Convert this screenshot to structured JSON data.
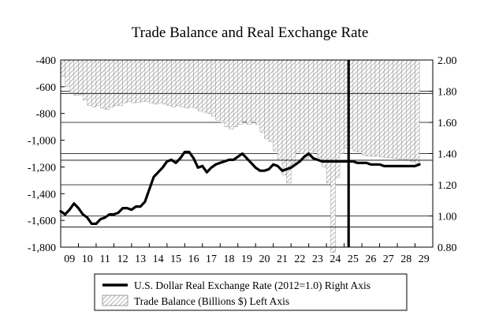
{
  "chart_data": {
    "type": "bar",
    "title": "Trade Balance and Real Exchange Rate",
    "grid": true,
    "x_tick_labels": [
      "09",
      "10",
      "11",
      "12",
      "13",
      "14",
      "15",
      "16",
      "17",
      "18",
      "19",
      "20",
      "21",
      "22",
      "23",
      "24",
      "25",
      "26",
      "27",
      "28",
      "29"
    ],
    "left_axis": {
      "ylim": [
        -1800,
        -400
      ],
      "ticks": [
        -400,
        -600,
        -800,
        -1000,
        -1200,
        -1400,
        -1600,
        -1800
      ],
      "tick_labels": [
        "-400",
        "-600",
        "-800",
        "-1,000",
        "-1,200",
        "-1,400",
        "-1,600",
        "-1,800"
      ]
    },
    "right_axis": {
      "ylim": [
        0.8,
        2.0
      ],
      "ticks": [
        2.0,
        1.8,
        1.6,
        1.4,
        1.2,
        1.0,
        0.8
      ],
      "tick_labels": [
        "2.00",
        "1.80",
        "1.60",
        "1.40",
        "1.20",
        "1.00",
        "0.80"
      ]
    },
    "hlines_left_axis": [
      -650,
      -1150,
      -1650
    ],
    "vertical_marker_x": 2025.25,
    "legend": {
      "position": "bottom",
      "entries": [
        "U.S. Dollar Real Exchange Rate (2012=1.0) Right Axis",
        "Trade Balance (Billions $) Left Axis"
      ]
    },
    "series": [
      {
        "name": "Trade Balance (Billions $) Left Axis",
        "type": "bar",
        "axis": "left",
        "pattern": "diagonal-hatch",
        "x": [
          2009.25,
          2009.5,
          2009.75,
          2010,
          2010.25,
          2010.5,
          2010.75,
          2011,
          2011.25,
          2011.5,
          2011.75,
          2012,
          2012.25,
          2012.5,
          2012.75,
          2013,
          2013.25,
          2013.5,
          2013.75,
          2014,
          2014.25,
          2014.5,
          2014.75,
          2015,
          2015.25,
          2015.5,
          2015.75,
          2016,
          2016.25,
          2016.5,
          2016.75,
          2017,
          2017.25,
          2017.5,
          2017.75,
          2018,
          2018.25,
          2018.5,
          2018.75,
          2019,
          2019.25,
          2019.5,
          2019.75,
          2020,
          2020.25,
          2020.5,
          2020.75,
          2021,
          2021.25,
          2021.5,
          2021.75,
          2022,
          2022.25,
          2022.5,
          2022.75,
          2023,
          2023.25,
          2023.5,
          2023.75,
          2024,
          2024.25,
          2024.5,
          2024.75,
          2025,
          2025.25,
          2025.5,
          2025.75,
          2026,
          2026.25,
          2026.5,
          2026.75,
          2027,
          2027.25,
          2027.5,
          2027.75,
          2028,
          2028.25,
          2028.5,
          2028.75,
          2029,
          2029.25
        ],
        "values": [
          -520,
          -600,
          -640,
          -665,
          -660,
          -700,
          -740,
          -750,
          -740,
          -760,
          -770,
          -750,
          -740,
          -740,
          -720,
          -710,
          -720,
          -715,
          -710,
          -710,
          -720,
          -730,
          -720,
          -730,
          -740,
          -750,
          -740,
          -750,
          -760,
          -750,
          -760,
          -780,
          -790,
          -800,
          -820,
          -850,
          -870,
          -900,
          -915,
          -900,
          -880,
          -860,
          -880,
          -850,
          -880,
          -940,
          -990,
          -1010,
          -1080,
          -1150,
          -1260,
          -1320,
          -1180,
          -1090,
          -1100,
          -1140,
          -1100,
          -1080,
          -1130,
          -1200,
          -1320,
          -1840,
          -1280,
          -1100,
          -1060,
          -1060,
          -1080,
          -1090,
          -1110,
          -1120,
          -1120,
          -1120,
          -1125,
          -1130,
          -1130,
          -1135,
          -1140,
          -1140,
          -1150,
          -1160,
          -1170
        ]
      },
      {
        "name": "U.S. Dollar Real Exchange Rate (2012=1.0) Right Axis",
        "type": "line",
        "axis": "right",
        "x": [
          2009,
          2009.25,
          2009.5,
          2009.75,
          2010,
          2010.25,
          2010.5,
          2010.75,
          2011,
          2011.25,
          2011.5,
          2011.75,
          2012,
          2012.25,
          2012.5,
          2012.75,
          2013,
          2013.25,
          2013.5,
          2013.75,
          2014,
          2014.25,
          2014.5,
          2014.75,
          2015,
          2015.25,
          2015.5,
          2015.75,
          2016,
          2016.25,
          2016.5,
          2016.75,
          2017,
          2017.25,
          2017.5,
          2017.75,
          2018,
          2018.25,
          2018.5,
          2018.75,
          2019,
          2019.25,
          2019.5,
          2019.75,
          2020,
          2020.25,
          2020.5,
          2020.75,
          2021,
          2021.25,
          2021.5,
          2021.75,
          2022,
          2022.25,
          2022.5,
          2022.75,
          2023,
          2023.25,
          2023.5,
          2023.75,
          2024,
          2024.25,
          2024.5,
          2024.75,
          2025,
          2025.25,
          2025.5,
          2025.75,
          2026,
          2026.25,
          2026.5,
          2026.75,
          2027,
          2027.25,
          2027.5,
          2027.75,
          2028,
          2028.25,
          2028.5,
          2028.75,
          2029,
          2029.25
        ],
        "values": [
          1.03,
          1.01,
          1.04,
          1.08,
          1.05,
          1.01,
          0.99,
          0.95,
          0.95,
          0.98,
          0.99,
          1.01,
          1.01,
          1.02,
          1.05,
          1.05,
          1.04,
          1.06,
          1.06,
          1.09,
          1.17,
          1.25,
          1.28,
          1.31,
          1.35,
          1.36,
          1.34,
          1.37,
          1.41,
          1.41,
          1.37,
          1.31,
          1.32,
          1.28,
          1.31,
          1.33,
          1.34,
          1.35,
          1.36,
          1.36,
          1.38,
          1.4,
          1.37,
          1.34,
          1.31,
          1.29,
          1.29,
          1.3,
          1.33,
          1.32,
          1.29,
          1.3,
          1.31,
          1.33,
          1.35,
          1.38,
          1.4,
          1.37,
          1.36,
          1.35,
          1.35,
          1.35,
          1.35,
          1.35,
          1.35,
          1.35,
          1.35,
          1.34,
          1.34,
          1.34,
          1.33,
          1.33,
          1.33,
          1.32,
          1.32,
          1.32,
          1.32,
          1.32,
          1.32,
          1.32,
          1.32,
          1.33
        ]
      }
    ]
  }
}
